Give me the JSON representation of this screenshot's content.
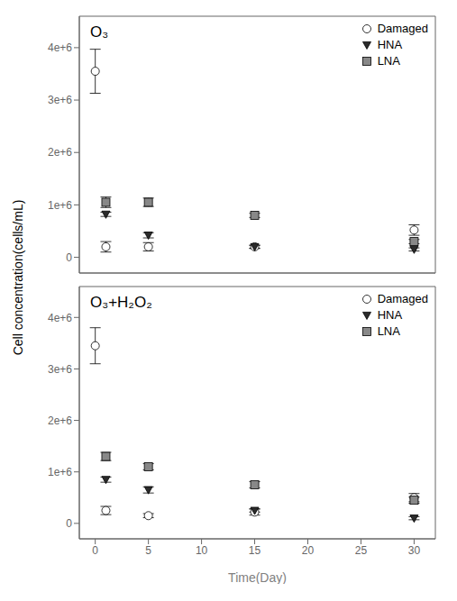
{
  "chart_data": [
    {
      "type": "scatter",
      "title": "O₃",
      "ylabel": "Cell concentration(cells/mL)",
      "xlim": [
        -1.5,
        32
      ],
      "xticks": [
        0,
        5,
        10,
        15,
        20,
        25,
        30
      ],
      "ylim": [
        -300000,
        4600000
      ],
      "yticks": [
        0,
        {
          "value": 1000000,
          "label": "1e+6"
        },
        {
          "value": 2000000,
          "label": "2e+6"
        },
        {
          "value": 3000000,
          "label": "3e+6"
        },
        {
          "value": 4000000,
          "label": "4e+6"
        }
      ],
      "grid": false,
      "legend": "upper right",
      "tick_labels": "y",
      "series": [
        {
          "name": "Damaged",
          "color": "#ffffff",
          "marker": "circle",
          "x": [
            0,
            1,
            5,
            15,
            30
          ],
          "values": [
            3550000,
            200000,
            200000,
            200000,
            520000
          ],
          "errors": [
            420000,
            100000,
            80000,
            30000,
            100000
          ]
        },
        {
          "name": "HNA",
          "color": "#2b2b2b",
          "marker": "triangle_down",
          "x": [
            1,
            5,
            15,
            30
          ],
          "values": [
            820000,
            420000,
            200000,
            150000
          ],
          "errors": [
            40000,
            50000,
            30000,
            30000
          ]
        },
        {
          "name": "LNA",
          "color": "#888888",
          "marker": "square",
          "x": [
            1,
            5,
            15,
            30
          ],
          "values": [
            1050000,
            1050000,
            800000,
            300000
          ],
          "errors": [
            100000,
            80000,
            40000,
            40000
          ]
        }
      ]
    },
    {
      "type": "scatter",
      "title": "O₃+H₂O₂",
      "xlabel": "Time(Day)",
      "xlim": [
        -1.5,
        32
      ],
      "xticks": [
        0,
        5,
        10,
        15,
        20,
        25,
        30
      ],
      "ylim": [
        -300000,
        4600000
      ],
      "yticks": [
        0,
        {
          "value": 1000000,
          "label": "1e+6"
        },
        {
          "value": 2000000,
          "label": "2e+6"
        },
        {
          "value": 3000000,
          "label": "3e+6"
        },
        {
          "value": 4000000,
          "label": "4e+6"
        }
      ],
      "grid": false,
      "legend": "upper right",
      "series": [
        {
          "name": "Damaged",
          "color": "#ffffff",
          "marker": "circle",
          "x": [
            0,
            1,
            5,
            15,
            30
          ],
          "values": [
            3450000,
            250000,
            150000,
            220000,
            500000
          ],
          "errors": [
            350000,
            80000,
            40000,
            60000,
            80000
          ]
        },
        {
          "name": "HNA",
          "color": "#2b2b2b",
          "marker": "triangle_down",
          "x": [
            1,
            5,
            15,
            30
          ],
          "values": [
            850000,
            650000,
            250000,
            100000
          ],
          "errors": [
            50000,
            60000,
            30000,
            30000
          ]
        },
        {
          "name": "LNA",
          "color": "#888888",
          "marker": "square",
          "x": [
            1,
            5,
            15,
            30
          ],
          "values": [
            1300000,
            1100000,
            750000,
            450000
          ],
          "errors": [
            80000,
            60000,
            60000,
            60000
          ]
        }
      ]
    }
  ]
}
